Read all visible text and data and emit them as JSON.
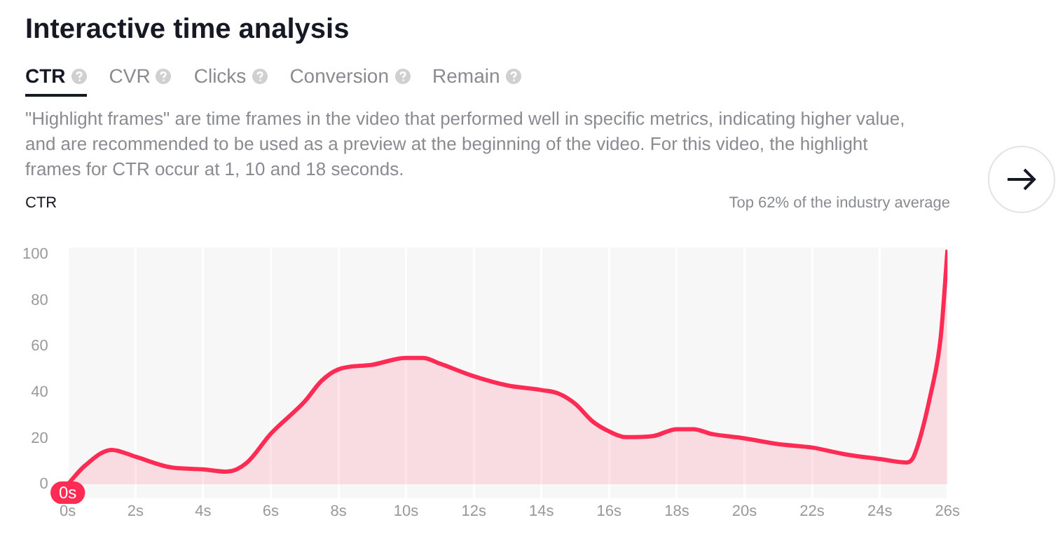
{
  "chart_data": {
    "type": "area",
    "title": "Interactive time analysis",
    "ylabel": "CTR",
    "annotations": [
      "CTR",
      "CVR",
      "Clicks",
      "Conversion",
      "Remain",
      "\"Highlight frames\" are time frames in the video that performed well in specific metrics, indicating higher value, and are recommended to be used as a preview at the beginning of the video. For this video, the highlight frames for CTR occur at 1, 10 and 18 seconds.",
      "Top 62% of the industry average",
      {
        "text": "0s",
        "x": 0,
        "y": 0
      }
    ],
    "x": [
      0,
      0.5,
      1.3,
      2,
      3,
      4,
      4.7,
      5.3,
      6,
      7,
      7.5,
      8,
      9,
      10,
      10.5,
      11,
      12,
      13,
      14,
      14.5,
      15,
      15.5,
      16,
      16.5,
      17.3,
      18,
      18.5,
      19,
      20,
      21,
      22,
      23,
      24,
      24.8,
      25,
      25.5,
      25.8,
      26
    ],
    "series": [
      {
        "color": "#fe2c55",
        "values": [
          0,
          8,
          15,
          12,
          7.5,
          6.5,
          5.5,
          9.5,
          22,
          36,
          45,
          50,
          52,
          55,
          55,
          52.5,
          47,
          43,
          41,
          39.5,
          35,
          27.5,
          23,
          20.5,
          21,
          24,
          24,
          22,
          20,
          17.5,
          16,
          13,
          11,
          9.5,
          12,
          39,
          64,
          102
        ]
      }
    ],
    "xlim": [
      0,
      26
    ],
    "ylim": [
      -6,
      103
    ],
    "xticks": [
      {
        "value": 0,
        "label": "0s"
      },
      {
        "value": 2,
        "label": "2s"
      },
      {
        "value": 4,
        "label": "4s"
      },
      {
        "value": 6,
        "label": "6s"
      },
      {
        "value": 8,
        "label": "8s"
      },
      {
        "value": 10,
        "label": "10s"
      },
      {
        "value": 12,
        "label": "12s"
      },
      {
        "value": 14,
        "label": "14s"
      },
      {
        "value": 16,
        "label": "16s"
      },
      {
        "value": 18,
        "label": "18s"
      },
      {
        "value": 20,
        "label": "20s"
      },
      {
        "value": 22,
        "label": "22s"
      },
      {
        "value": 24,
        "label": "24s"
      },
      {
        "value": 26,
        "label": "26s"
      }
    ],
    "yticks": [
      0,
      20,
      40,
      60,
      80,
      100
    ],
    "grid": "x",
    "legend": false,
    "marker": "none",
    "line_style": "solid"
  }
}
